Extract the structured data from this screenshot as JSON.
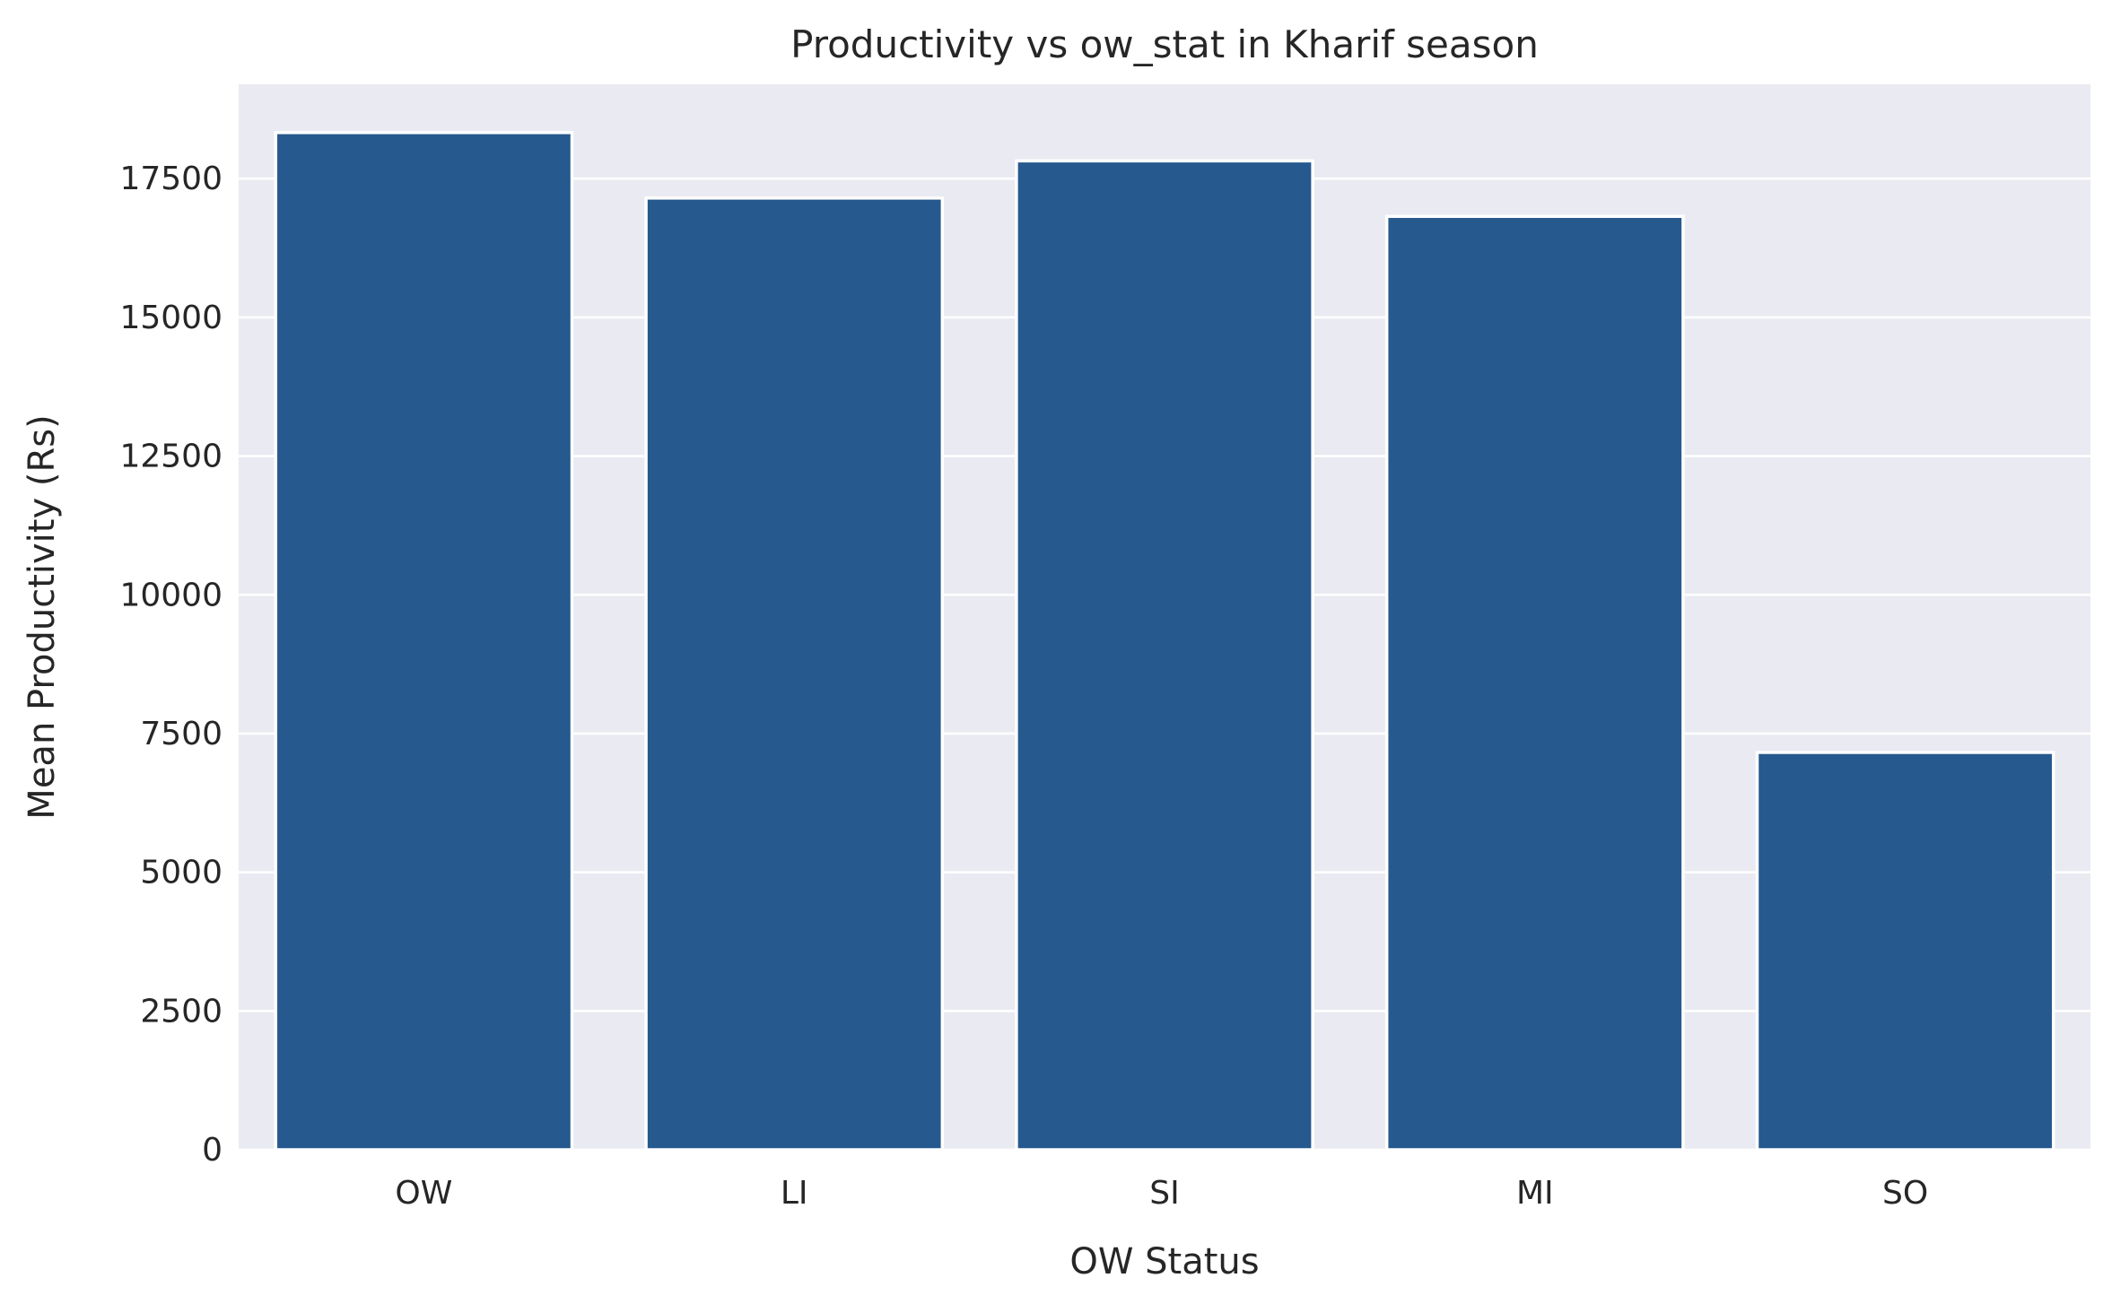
{
  "chart_data": {
    "type": "bar",
    "title": "Productivity vs ow_stat in Kharif season",
    "xlabel": "OW Status",
    "ylabel": "Mean Productivity (Rs)",
    "categories": [
      "OW",
      "LI",
      "SI",
      "MI",
      "SO"
    ],
    "values": [
      18330,
      17150,
      17820,
      16820,
      7160
    ],
    "ylim": [
      0,
      19200
    ],
    "yticks": [
      0,
      2500,
      5000,
      7500,
      10000,
      12500,
      15000,
      17500
    ],
    "ytick_labels": [
      "0",
      "2500",
      "5000",
      "7500",
      "10000",
      "12500",
      "15000",
      "17500"
    ],
    "grid": true,
    "bar_color": "#26598e",
    "background_color": "#eaeaf2"
  }
}
